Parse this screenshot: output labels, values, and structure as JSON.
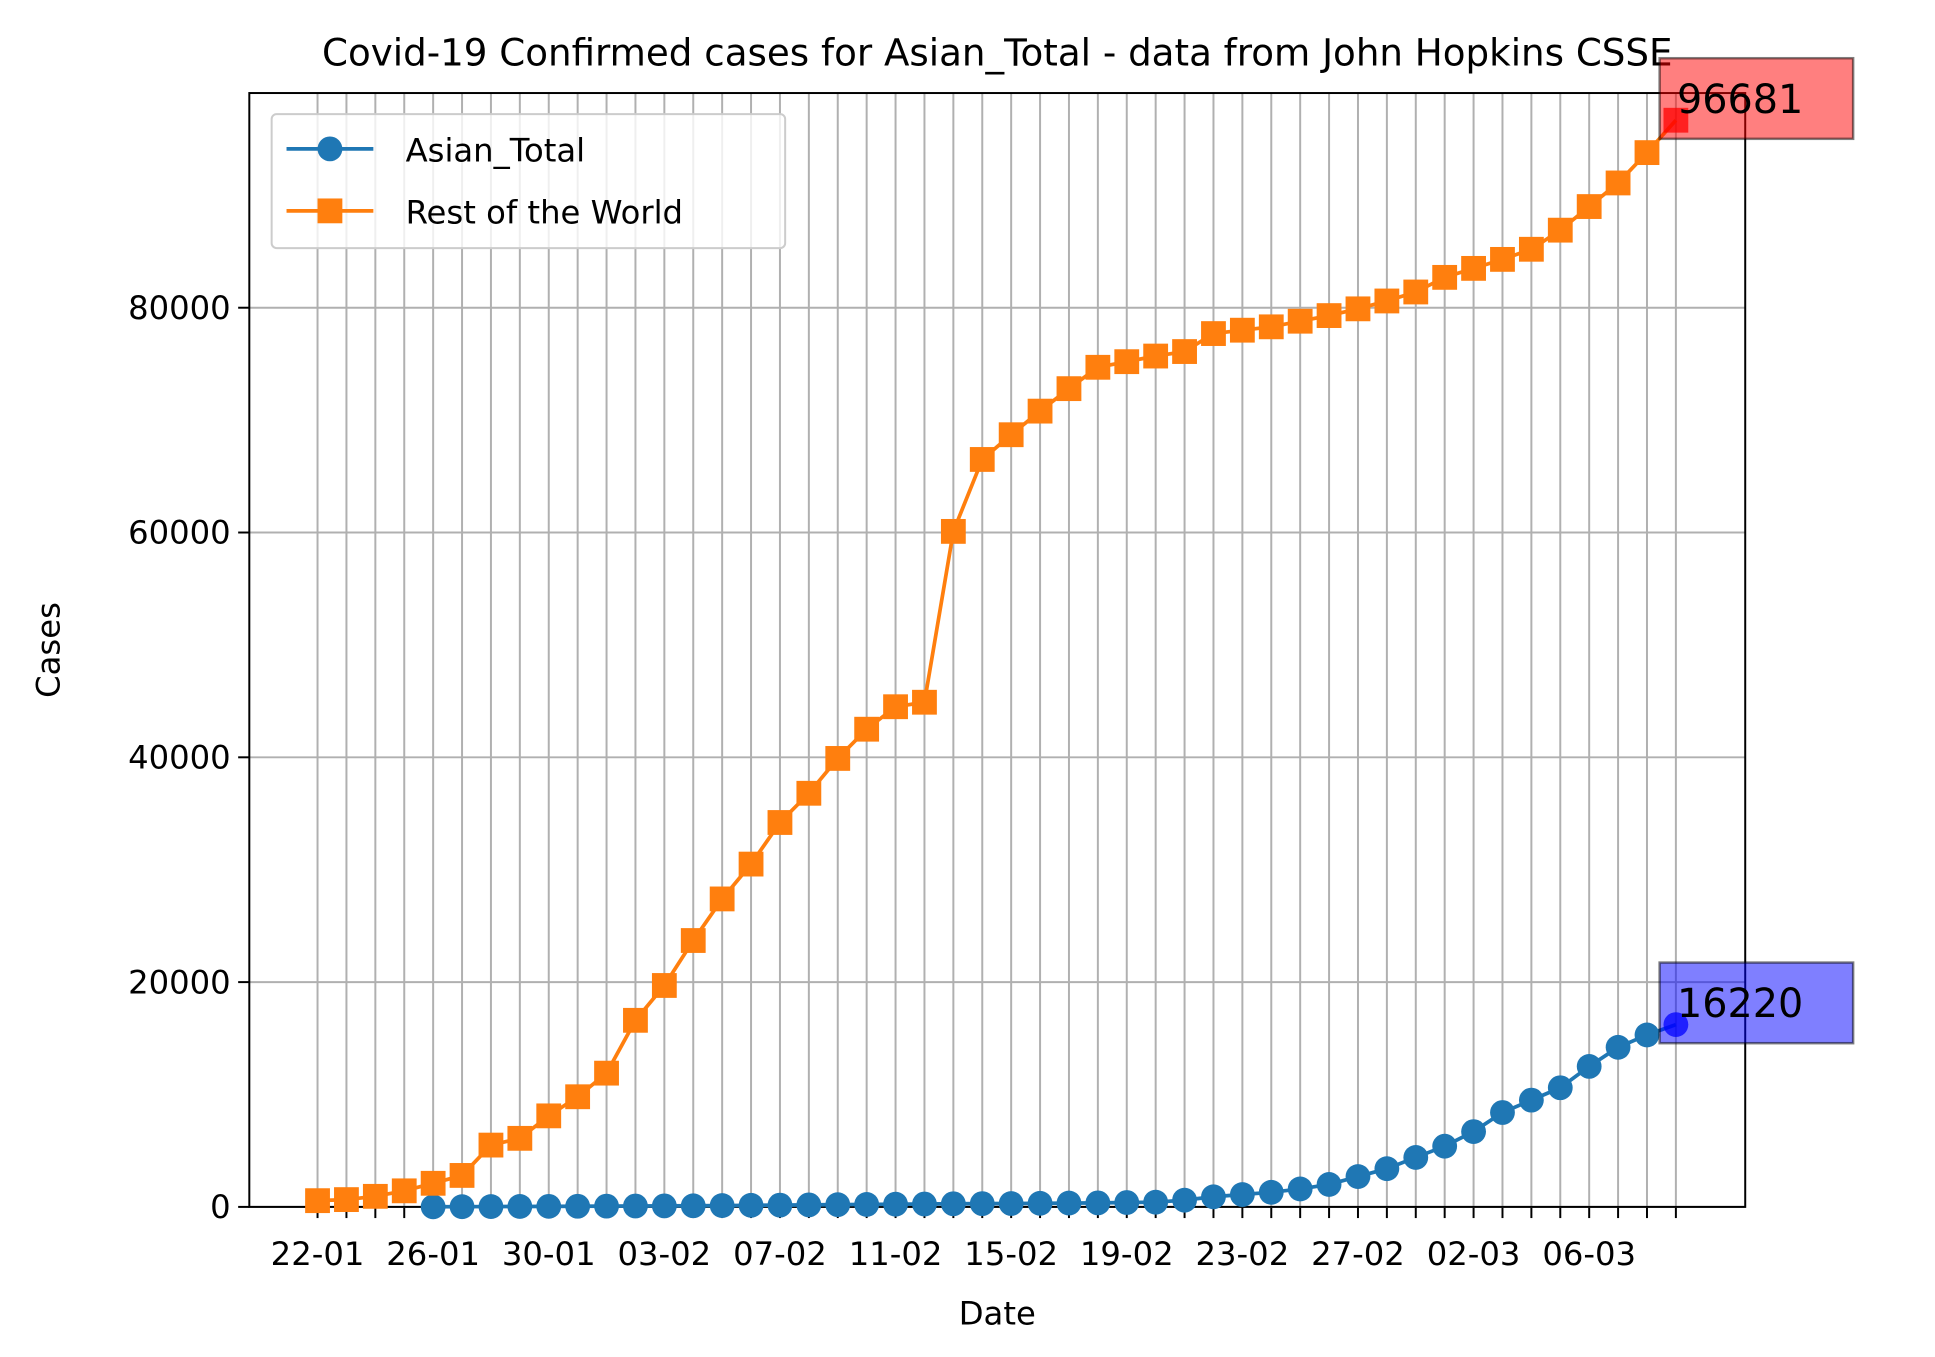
{
  "chart_data": {
    "type": "line",
    "title": "Covid-19 Confirmed cases for Asian_Total - data from John Hopkins CSSE",
    "x_label": "Date",
    "y_label": "Cases",
    "categories": [
      "22-01",
      null,
      null,
      null,
      "26-01",
      null,
      null,
      null,
      "30-01",
      null,
      null,
      null,
      "03-02",
      null,
      null,
      null,
      "07-02",
      null,
      null,
      null,
      "11-02",
      null,
      null,
      null,
      "15-02",
      null,
      null,
      null,
      "19-02",
      null,
      null,
      null,
      "23-02",
      null,
      null,
      null,
      "27-02",
      null,
      null,
      null,
      "02-03",
      null,
      null,
      null,
      "06-03",
      null,
      null,
      null
    ],
    "series": [
      {
        "name": "Asian_Total",
        "color": "#1f77b4",
        "marker": "circle",
        "highlight_color": "#0000ff",
        "values": [
          null,
          null,
          null,
          null,
          10,
          20,
          30,
          40,
          50,
          60,
          70,
          80,
          90,
          100,
          120,
          140,
          160,
          180,
          200,
          220,
          240,
          260,
          280,
          290,
          300,
          320,
          340,
          360,
          390,
          420,
          600,
          900,
          1100,
          1300,
          1600,
          2000,
          2700,
          3400,
          4400,
          5400,
          6700,
          8400,
          9500,
          10600,
          12500,
          14200,
          15300,
          16220
        ]
      },
      {
        "name": "Rest of the World",
        "color": "#ff7f0e",
        "marker": "square",
        "highlight_color": "#ff0000",
        "values": [
          555,
          650,
          940,
          1430,
          2100,
          2800,
          5500,
          6100,
          8100,
          9800,
          11900,
          16600,
          19700,
          23700,
          27400,
          30500,
          34200,
          36800,
          39900,
          42500,
          44500,
          44900,
          60100,
          66500,
          68700,
          70800,
          72800,
          74700,
          75200,
          75700,
          76100,
          77700,
          78000,
          78300,
          78800,
          79300,
          79900,
          80600,
          81400,
          82700,
          83500,
          84300,
          85200,
          86900,
          89000,
          91100,
          93800,
          96681
        ]
      }
    ],
    "ylim": [
      0,
      99100
    ],
    "yticks": [
      0,
      20000,
      40000,
      60000,
      80000
    ],
    "grid": true,
    "legend": "upper left"
  }
}
